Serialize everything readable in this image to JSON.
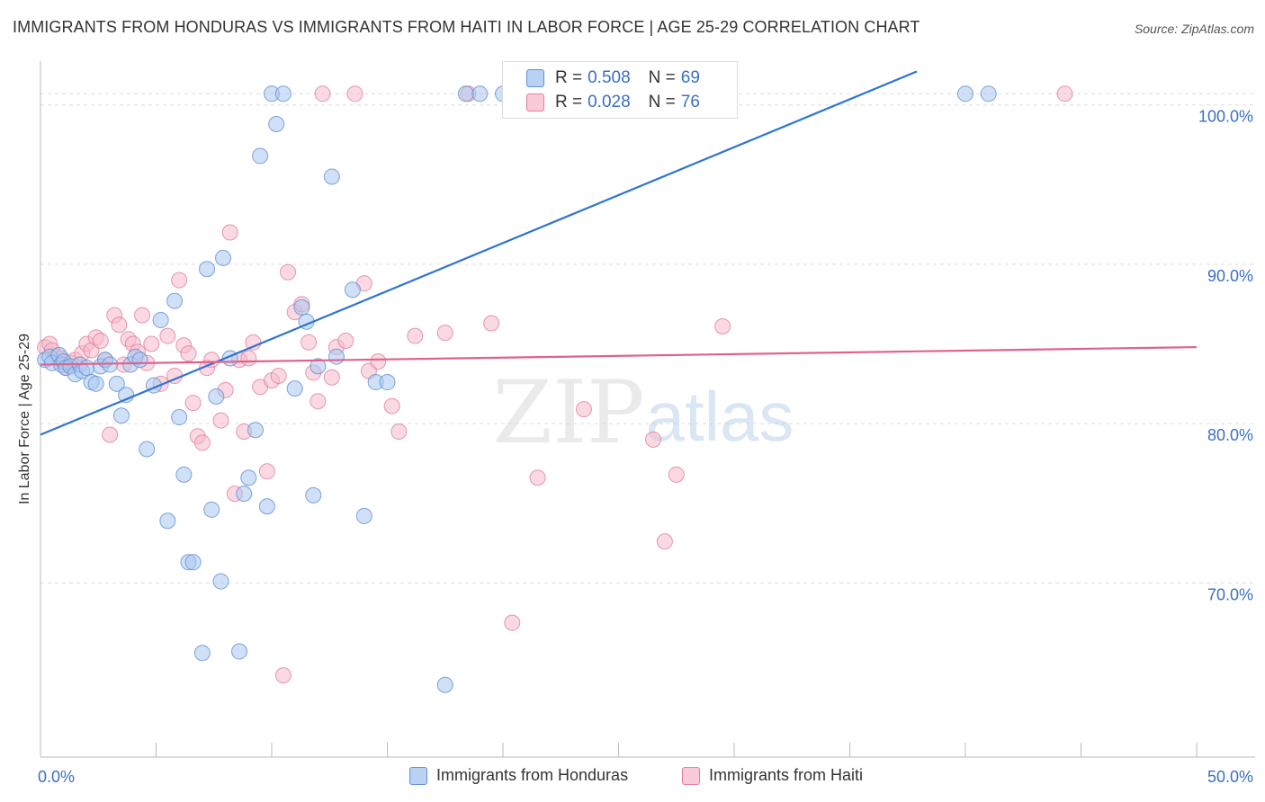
{
  "title": "IMMIGRANTS FROM HONDURAS VS IMMIGRANTS FROM HAITI IN LABOR FORCE | AGE 25-29 CORRELATION CHART",
  "source": "Source: ZipAtlas.com",
  "watermark": {
    "zip": "ZIP",
    "atlas": "atlas"
  },
  "colors": {
    "honduras_fill": "#a9c6ef",
    "honduras_stroke": "#5f8fd6",
    "honduras_line": "#2f74d0",
    "haiti_fill": "#f6b9cb",
    "haiti_stroke": "#e17f9f",
    "haiti_line": "#e0628c",
    "tick_label": "#3a6fc4",
    "grid": "#dddddd"
  },
  "legend_top": {
    "rows": [
      {
        "r_label": "R = ",
        "r_value": "0.508",
        "n_label": "N = ",
        "n_value": "69"
      },
      {
        "r_label": "R = ",
        "r_value": "0.028",
        "n_label": "N = ",
        "n_value": "76"
      }
    ]
  },
  "legend_bottom": [
    "Immigrants from Honduras",
    "Immigrants from Haiti"
  ],
  "chart_data": {
    "type": "scatter",
    "title": "IMMIGRANTS FROM HONDURAS VS IMMIGRANTS FROM HAITI IN LABOR FORCE | AGE 25-29 CORRELATION CHART",
    "xlabel": "",
    "ylabel": "In Labor Force | Age 25-29",
    "xlim": [
      0,
      50
    ],
    "ylim": [
      60.2,
      103.2
    ],
    "x_tick_labels": [
      "0.0%",
      "50.0%"
    ],
    "y_ticks": [
      70,
      80,
      90,
      100
    ],
    "y_tick_labels": [
      "70.0%",
      "80.0%",
      "90.0%",
      "100.0%"
    ],
    "grid": true,
    "legend_position": "top-center",
    "series": [
      {
        "name": "Immigrants from Honduras",
        "stats": {
          "R": 0.508,
          "N": 69
        },
        "trend": {
          "x": [
            0,
            37.9
          ],
          "y": [
            79.3,
            102.1
          ]
        },
        "points": [
          [
            0.2,
            84.0
          ],
          [
            0.4,
            84.2
          ],
          [
            0.5,
            83.8
          ],
          [
            0.8,
            84.3
          ],
          [
            0.9,
            83.7
          ],
          [
            1.0,
            83.9
          ],
          [
            1.1,
            83.5
          ],
          [
            1.3,
            83.6
          ],
          [
            1.5,
            83.1
          ],
          [
            1.7,
            83.7
          ],
          [
            1.8,
            83.3
          ],
          [
            2.0,
            83.5
          ],
          [
            2.2,
            82.6
          ],
          [
            2.4,
            82.5
          ],
          [
            2.6,
            83.6
          ],
          [
            2.8,
            84.0
          ],
          [
            3.0,
            83.7
          ],
          [
            3.3,
            82.5
          ],
          [
            3.5,
            80.5
          ],
          [
            3.7,
            81.8
          ],
          [
            3.9,
            83.7
          ],
          [
            4.1,
            84.2
          ],
          [
            4.3,
            84.0
          ],
          [
            4.6,
            78.4
          ],
          [
            4.9,
            82.4
          ],
          [
            5.2,
            86.5
          ],
          [
            5.5,
            73.9
          ],
          [
            5.8,
            87.7
          ],
          [
            6.0,
            80.4
          ],
          [
            6.2,
            76.8
          ],
          [
            6.4,
            71.3
          ],
          [
            6.6,
            71.3
          ],
          [
            7.0,
            65.6
          ],
          [
            7.2,
            89.7
          ],
          [
            7.4,
            74.6
          ],
          [
            7.6,
            81.7
          ],
          [
            7.8,
            70.1
          ],
          [
            7.9,
            90.4
          ],
          [
            8.2,
            84.1
          ],
          [
            8.6,
            65.7
          ],
          [
            8.8,
            75.6
          ],
          [
            9.0,
            76.6
          ],
          [
            9.3,
            79.6
          ],
          [
            9.5,
            96.8
          ],
          [
            9.8,
            74.8
          ],
          [
            10.0,
            100.7
          ],
          [
            10.2,
            98.8
          ],
          [
            10.5,
            100.7
          ],
          [
            11.0,
            82.2
          ],
          [
            11.3,
            87.3
          ],
          [
            11.5,
            86.4
          ],
          [
            11.8,
            75.5
          ],
          [
            12.0,
            83.6
          ],
          [
            12.6,
            95.5
          ],
          [
            12.8,
            84.2
          ],
          [
            13.5,
            88.4
          ],
          [
            14.0,
            74.2
          ],
          [
            14.5,
            82.6
          ],
          [
            15.0,
            82.6
          ],
          [
            17.5,
            63.6
          ],
          [
            18.4,
            100.7
          ],
          [
            19.0,
            100.7
          ],
          [
            20.0,
            100.7
          ],
          [
            21.0,
            100.7
          ],
          [
            22.5,
            100.7
          ],
          [
            23.0,
            100.7
          ],
          [
            28.0,
            100.7
          ],
          [
            40.0,
            100.7
          ],
          [
            41.0,
            100.7
          ]
        ]
      },
      {
        "name": "Immigrants from Haiti",
        "stats": {
          "R": 0.028,
          "N": 76
        },
        "trend": {
          "x": [
            0,
            50
          ],
          "y": [
            83.7,
            84.8
          ]
        },
        "points": [
          [
            0.2,
            84.8
          ],
          [
            0.4,
            85.0
          ],
          [
            0.5,
            84.6
          ],
          [
            0.7,
            84.2
          ],
          [
            0.9,
            84.1
          ],
          [
            1.1,
            83.5
          ],
          [
            1.3,
            83.8
          ],
          [
            1.5,
            84.0
          ],
          [
            1.8,
            84.4
          ],
          [
            2.0,
            85.0
          ],
          [
            2.2,
            84.6
          ],
          [
            2.4,
            85.4
          ],
          [
            2.6,
            85.2
          ],
          [
            2.8,
            84.0
          ],
          [
            3.0,
            79.3
          ],
          [
            3.2,
            86.8
          ],
          [
            3.4,
            86.2
          ],
          [
            3.6,
            83.7
          ],
          [
            3.8,
            85.3
          ],
          [
            4.0,
            85.0
          ],
          [
            4.2,
            84.5
          ],
          [
            4.4,
            86.8
          ],
          [
            4.6,
            83.8
          ],
          [
            4.8,
            85.0
          ],
          [
            5.2,
            82.5
          ],
          [
            5.5,
            85.5
          ],
          [
            5.8,
            83.0
          ],
          [
            6.0,
            89.0
          ],
          [
            6.2,
            84.9
          ],
          [
            6.4,
            84.4
          ],
          [
            6.6,
            81.3
          ],
          [
            6.8,
            79.2
          ],
          [
            7.0,
            78.8
          ],
          [
            7.2,
            83.5
          ],
          [
            7.4,
            84.0
          ],
          [
            7.8,
            80.2
          ],
          [
            8.0,
            82.1
          ],
          [
            8.2,
            92.0
          ],
          [
            8.4,
            75.6
          ],
          [
            8.6,
            84.0
          ],
          [
            8.8,
            79.5
          ],
          [
            9.0,
            84.1
          ],
          [
            9.2,
            85.1
          ],
          [
            9.5,
            82.3
          ],
          [
            9.8,
            77.0
          ],
          [
            10.0,
            82.7
          ],
          [
            10.3,
            83.0
          ],
          [
            10.5,
            64.2
          ],
          [
            10.7,
            89.5
          ],
          [
            11.0,
            87.0
          ],
          [
            11.3,
            87.5
          ],
          [
            11.6,
            85.1
          ],
          [
            11.8,
            83.2
          ],
          [
            12.0,
            81.4
          ],
          [
            12.2,
            100.7
          ],
          [
            12.6,
            82.9
          ],
          [
            12.8,
            84.8
          ],
          [
            13.2,
            85.2
          ],
          [
            13.6,
            100.7
          ],
          [
            14.0,
            88.8
          ],
          [
            14.2,
            83.3
          ],
          [
            14.6,
            83.9
          ],
          [
            15.2,
            81.1
          ],
          [
            15.5,
            79.5
          ],
          [
            16.2,
            85.5
          ],
          [
            17.5,
            85.7
          ],
          [
            18.5,
            100.7
          ],
          [
            19.5,
            86.3
          ],
          [
            20.4,
            67.5
          ],
          [
            21.5,
            76.6
          ],
          [
            23.5,
            80.9
          ],
          [
            26.5,
            79.0
          ],
          [
            27.0,
            72.6
          ],
          [
            27.5,
            76.8
          ],
          [
            29.5,
            86.1
          ],
          [
            44.3,
            100.7
          ]
        ]
      }
    ]
  }
}
